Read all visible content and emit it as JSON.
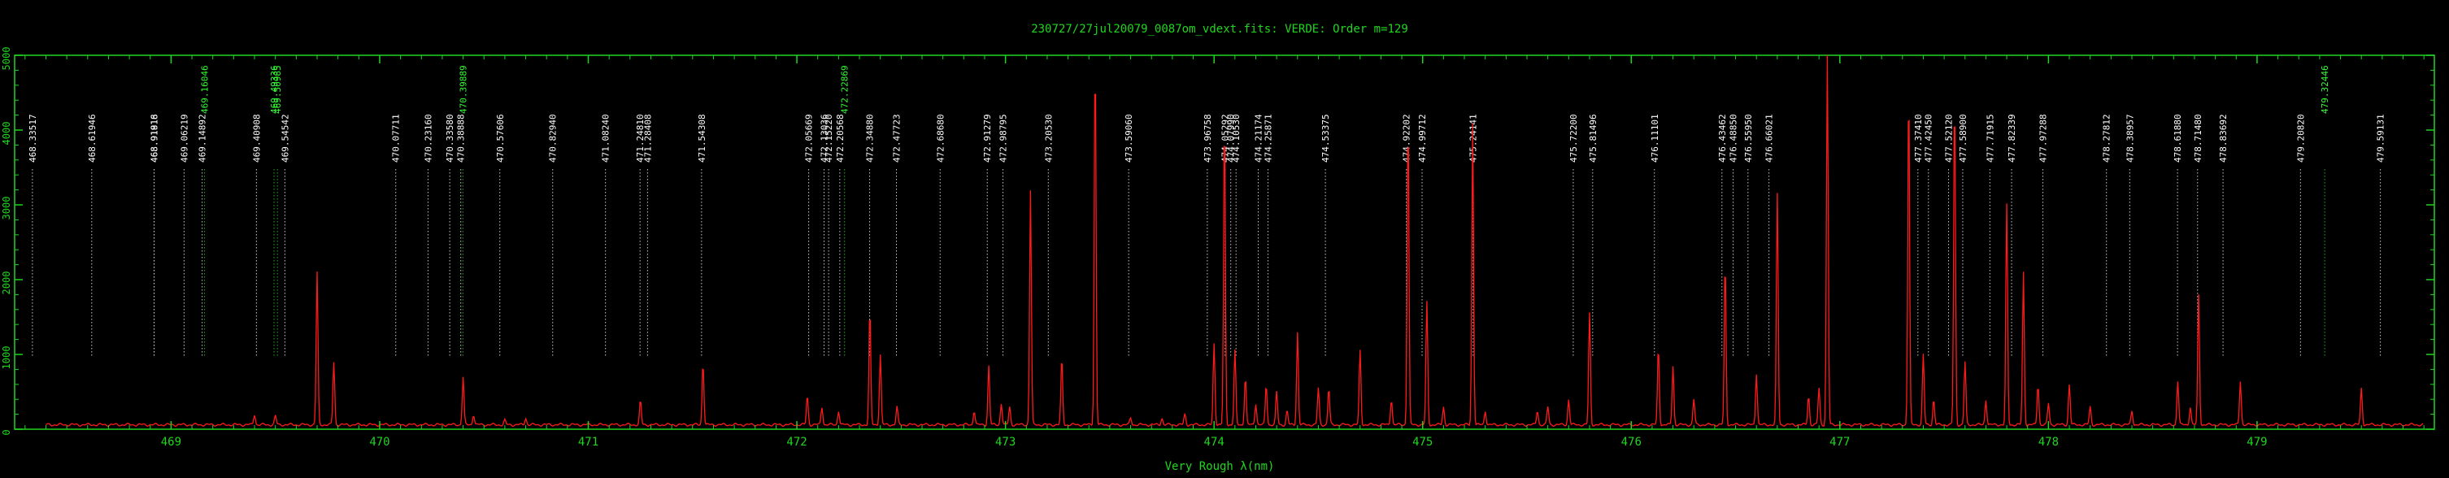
{
  "chart_data": {
    "type": "line",
    "title": "230727/27jul20079_0087om_vdext.fits: VERDE: Order m=129",
    "xlabel": "Very Rough λ(nm)",
    "ylabel": "",
    "xlim": [
      468.25,
      479.85
    ],
    "ylim": [
      0,
      5000
    ],
    "x_ticks": [
      469,
      470,
      471,
      472,
      473,
      474,
      475,
      476,
      477,
      478,
      479
    ],
    "y_ticks": [
      0,
      1000,
      2000,
      3000,
      4000,
      5000
    ],
    "grid": false,
    "colors": {
      "axes": "#1fd61f",
      "spectrum": "#ff1a1a",
      "line_white": "#ffffff",
      "line_green": "#33ff33"
    },
    "series": [
      {
        "baseline": 60,
        "peaks": [
          [
            469.4,
            200
          ],
          [
            469.5,
            180
          ],
          [
            469.7,
            2100
          ],
          [
            469.78,
            900
          ],
          [
            470.4,
            700
          ],
          [
            470.45,
            200
          ],
          [
            470.6,
            120
          ],
          [
            470.7,
            150
          ],
          [
            471.25,
            380
          ],
          [
            471.55,
            900
          ],
          [
            472.05,
            450
          ],
          [
            472.12,
            300
          ],
          [
            472.2,
            250
          ],
          [
            472.35,
            1600
          ],
          [
            472.4,
            1000
          ],
          [
            472.48,
            300
          ],
          [
            472.85,
            250
          ],
          [
            472.92,
            850
          ],
          [
            472.98,
            350
          ],
          [
            473.02,
            300
          ],
          [
            473.12,
            3200
          ],
          [
            473.27,
            950
          ],
          [
            473.43,
            5000
          ],
          [
            473.6,
            150
          ],
          [
            473.75,
            150
          ],
          [
            473.86,
            200
          ],
          [
            474.0,
            1150
          ],
          [
            474.05,
            4200
          ],
          [
            474.1,
            1050
          ],
          [
            474.15,
            700
          ],
          [
            474.2,
            350
          ],
          [
            474.25,
            600
          ],
          [
            474.3,
            500
          ],
          [
            474.35,
            250
          ],
          [
            474.4,
            1300
          ],
          [
            474.5,
            550
          ],
          [
            474.55,
            550
          ],
          [
            474.7,
            1050
          ],
          [
            474.85,
            400
          ],
          [
            474.93,
            4200
          ],
          [
            475.02,
            1700
          ],
          [
            475.1,
            300
          ],
          [
            475.24,
            4100
          ],
          [
            475.3,
            250
          ],
          [
            475.55,
            250
          ],
          [
            475.6,
            300
          ],
          [
            475.7,
            400
          ],
          [
            475.8,
            1550
          ],
          [
            476.13,
            1100
          ],
          [
            476.2,
            850
          ],
          [
            476.3,
            400
          ],
          [
            476.45,
            2250
          ],
          [
            476.6,
            750
          ],
          [
            476.7,
            3150
          ],
          [
            476.85,
            450
          ],
          [
            476.9,
            550
          ],
          [
            476.94,
            5000
          ],
          [
            477.33,
            4600
          ],
          [
            477.4,
            1000
          ],
          [
            477.45,
            400
          ],
          [
            477.55,
            4500
          ],
          [
            477.6,
            900
          ],
          [
            477.7,
            400
          ],
          [
            477.8,
            3000
          ],
          [
            477.88,
            2100
          ],
          [
            477.95,
            600
          ],
          [
            478.0,
            350
          ],
          [
            478.1,
            600
          ],
          [
            478.2,
            300
          ],
          [
            478.4,
            250
          ],
          [
            478.62,
            650
          ],
          [
            478.68,
            300
          ],
          [
            478.72,
            1800
          ],
          [
            478.92,
            650
          ],
          [
            479.5,
            550
          ]
        ]
      }
    ],
    "line_ids": [
      {
        "w": 468.33517,
        "label": "468.33517",
        "c": "w"
      },
      {
        "w": 468.61946,
        "label": "468.61946",
        "c": "w"
      },
      {
        "w": 468.91818,
        "label": "468.91818",
        "c": "w"
      },
      {
        "w": 468.91916,
        "label": "468.91916",
        "c": "w"
      },
      {
        "w": 469.06219,
        "label": "469.06219",
        "c": "w"
      },
      {
        "w": 469.14892,
        "label": "469.14892",
        "c": "w"
      },
      {
        "w": 469.16046,
        "label": "469.16046",
        "c": "g"
      },
      {
        "w": 469.40908,
        "label": "469.40908",
        "c": "w"
      },
      {
        "w": 469.49336,
        "label": "469.49336",
        "c": "g"
      },
      {
        "w": 469.50985,
        "label": "469.50985",
        "c": "g"
      },
      {
        "w": 469.54542,
        "label": "469.54542",
        "c": "w"
      },
      {
        "w": 470.07711,
        "label": "470.07711",
        "c": "w"
      },
      {
        "w": 470.2316,
        "label": "470.23160",
        "c": "w"
      },
      {
        "w": 470.3358,
        "label": "470.33580",
        "c": "w"
      },
      {
        "w": 470.38888,
        "label": "470.38888",
        "c": "w"
      },
      {
        "w": 470.39889,
        "label": "470.39889",
        "c": "g"
      },
      {
        "w": 470.57606,
        "label": "470.57606",
        "c": "w"
      },
      {
        "w": 470.8294,
        "label": "470.82940",
        "c": "w"
      },
      {
        "w": 471.0824,
        "label": "471.08240",
        "c": "w"
      },
      {
        "w": 471.2481,
        "label": "471.24810",
        "c": "w"
      },
      {
        "w": 471.28408,
        "label": "471.28408",
        "c": "w"
      },
      {
        "w": 471.54308,
        "label": "471.54308",
        "c": "w"
      },
      {
        "w": 472.05669,
        "label": "472.05669",
        "c": "w"
      },
      {
        "w": 472.13036,
        "label": "472.13036",
        "c": "w"
      },
      {
        "w": 472.1522,
        "label": "472.15220",
        "c": "w"
      },
      {
        "w": 472.20568,
        "label": "472.20568",
        "c": "w"
      },
      {
        "w": 472.22869,
        "label": "472.22869",
        "c": "g"
      },
      {
        "w": 472.3488,
        "label": "472.34880",
        "c": "w"
      },
      {
        "w": 472.47723,
        "label": "472.47723",
        "c": "w"
      },
      {
        "w": 472.6868,
        "label": "472.68680",
        "c": "w"
      },
      {
        "w": 472.91279,
        "label": "472.91279",
        "c": "w"
      },
      {
        "w": 472.98795,
        "label": "472.98795",
        "c": "w"
      },
      {
        "w": 473.2053,
        "label": "473.20530",
        "c": "w"
      },
      {
        "w": 473.5906,
        "label": "473.59060",
        "c": "w"
      },
      {
        "w": 473.96758,
        "label": "473.96758",
        "c": "w"
      },
      {
        "w": 474.05292,
        "label": "474.05292",
        "c": "w"
      },
      {
        "w": 474.0799,
        "label": "474.07990",
        "c": "w"
      },
      {
        "w": 474.1053,
        "label": "474.10530",
        "c": "w"
      },
      {
        "w": 474.21174,
        "label": "474.21174",
        "c": "w"
      },
      {
        "w": 474.25871,
        "label": "474.25871",
        "c": "w"
      },
      {
        "w": 474.53375,
        "label": "474.53375",
        "c": "w"
      },
      {
        "w": 474.92202,
        "label": "474.92202",
        "c": "w"
      },
      {
        "w": 474.99712,
        "label": "474.99712",
        "c": "w"
      },
      {
        "w": 475.24141,
        "label": "475.24141",
        "c": "w"
      },
      {
        "w": 475.722,
        "label": "475.72200",
        "c": "w"
      },
      {
        "w": 475.81496,
        "label": "475.81496",
        "c": "w"
      },
      {
        "w": 476.11101,
        "label": "476.11101",
        "c": "w"
      },
      {
        "w": 476.43462,
        "label": "476.43462",
        "c": "w"
      },
      {
        "w": 476.4885,
        "label": "476.48850",
        "c": "w"
      },
      {
        "w": 476.5595,
        "label": "476.55950",
        "c": "w"
      },
      {
        "w": 476.66021,
        "label": "476.66021",
        "c": "w"
      },
      {
        "w": 477.3741,
        "label": "477.37410",
        "c": "w"
      },
      {
        "w": 477.4245,
        "label": "477.42450",
        "c": "w"
      },
      {
        "w": 477.5212,
        "label": "477.52120",
        "c": "w"
      },
      {
        "w": 477.589,
        "label": "477.58900",
        "c": "w"
      },
      {
        "w": 477.71915,
        "label": "477.71915",
        "c": "w"
      },
      {
        "w": 477.82339,
        "label": "477.82339",
        "c": "w"
      },
      {
        "w": 477.97288,
        "label": "477.97288",
        "c": "w"
      },
      {
        "w": 478.27812,
        "label": "478.27812",
        "c": "w"
      },
      {
        "w": 478.38957,
        "label": "478.38957",
        "c": "w"
      },
      {
        "w": 478.6188,
        "label": "478.61880",
        "c": "w"
      },
      {
        "w": 478.7148,
        "label": "478.71480",
        "c": "w"
      },
      {
        "w": 478.83692,
        "label": "478.83692",
        "c": "w"
      },
      {
        "w": 479.2082,
        "label": "479.20820",
        "c": "w"
      },
      {
        "w": 479.32446,
        "label": "479.32446",
        "c": "g"
      },
      {
        "w": 479.59131,
        "label": "479.59131",
        "c": "w"
      }
    ]
  }
}
